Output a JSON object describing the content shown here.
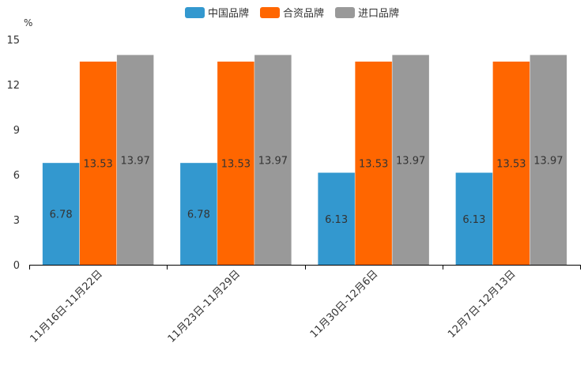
{
  "chart_data": {
    "type": "bar",
    "title": "",
    "xlabel": "",
    "ylabel": "%",
    "ylim": [
      0,
      15
    ],
    "yticks": [
      0,
      3,
      6,
      9,
      12,
      15
    ],
    "grid": false,
    "legend_position": "top-center",
    "categories": [
      "11月16日-11月22日",
      "11月23日-11月29日",
      "11月30日-12月6日",
      "12月7日-12月13日"
    ],
    "series": [
      {
        "name": "中国品牌",
        "color": "#3398cf",
        "values": [
          6.78,
          6.78,
          6.13,
          6.13
        ]
      },
      {
        "name": "合资品牌",
        "color": "#ff6600",
        "values": [
          13.53,
          13.53,
          13.53,
          13.53
        ]
      },
      {
        "name": "进口品牌",
        "color": "#999999",
        "values": [
          13.97,
          13.97,
          13.97,
          13.97
        ]
      }
    ],
    "data_labels": [
      [
        "6.78",
        "6.78",
        "6.13",
        "6.13"
      ],
      [
        "13.53",
        "13.53",
        "13.53",
        "13.53"
      ],
      [
        "13.97",
        "13.97",
        "13.97",
        "13.97"
      ]
    ]
  }
}
